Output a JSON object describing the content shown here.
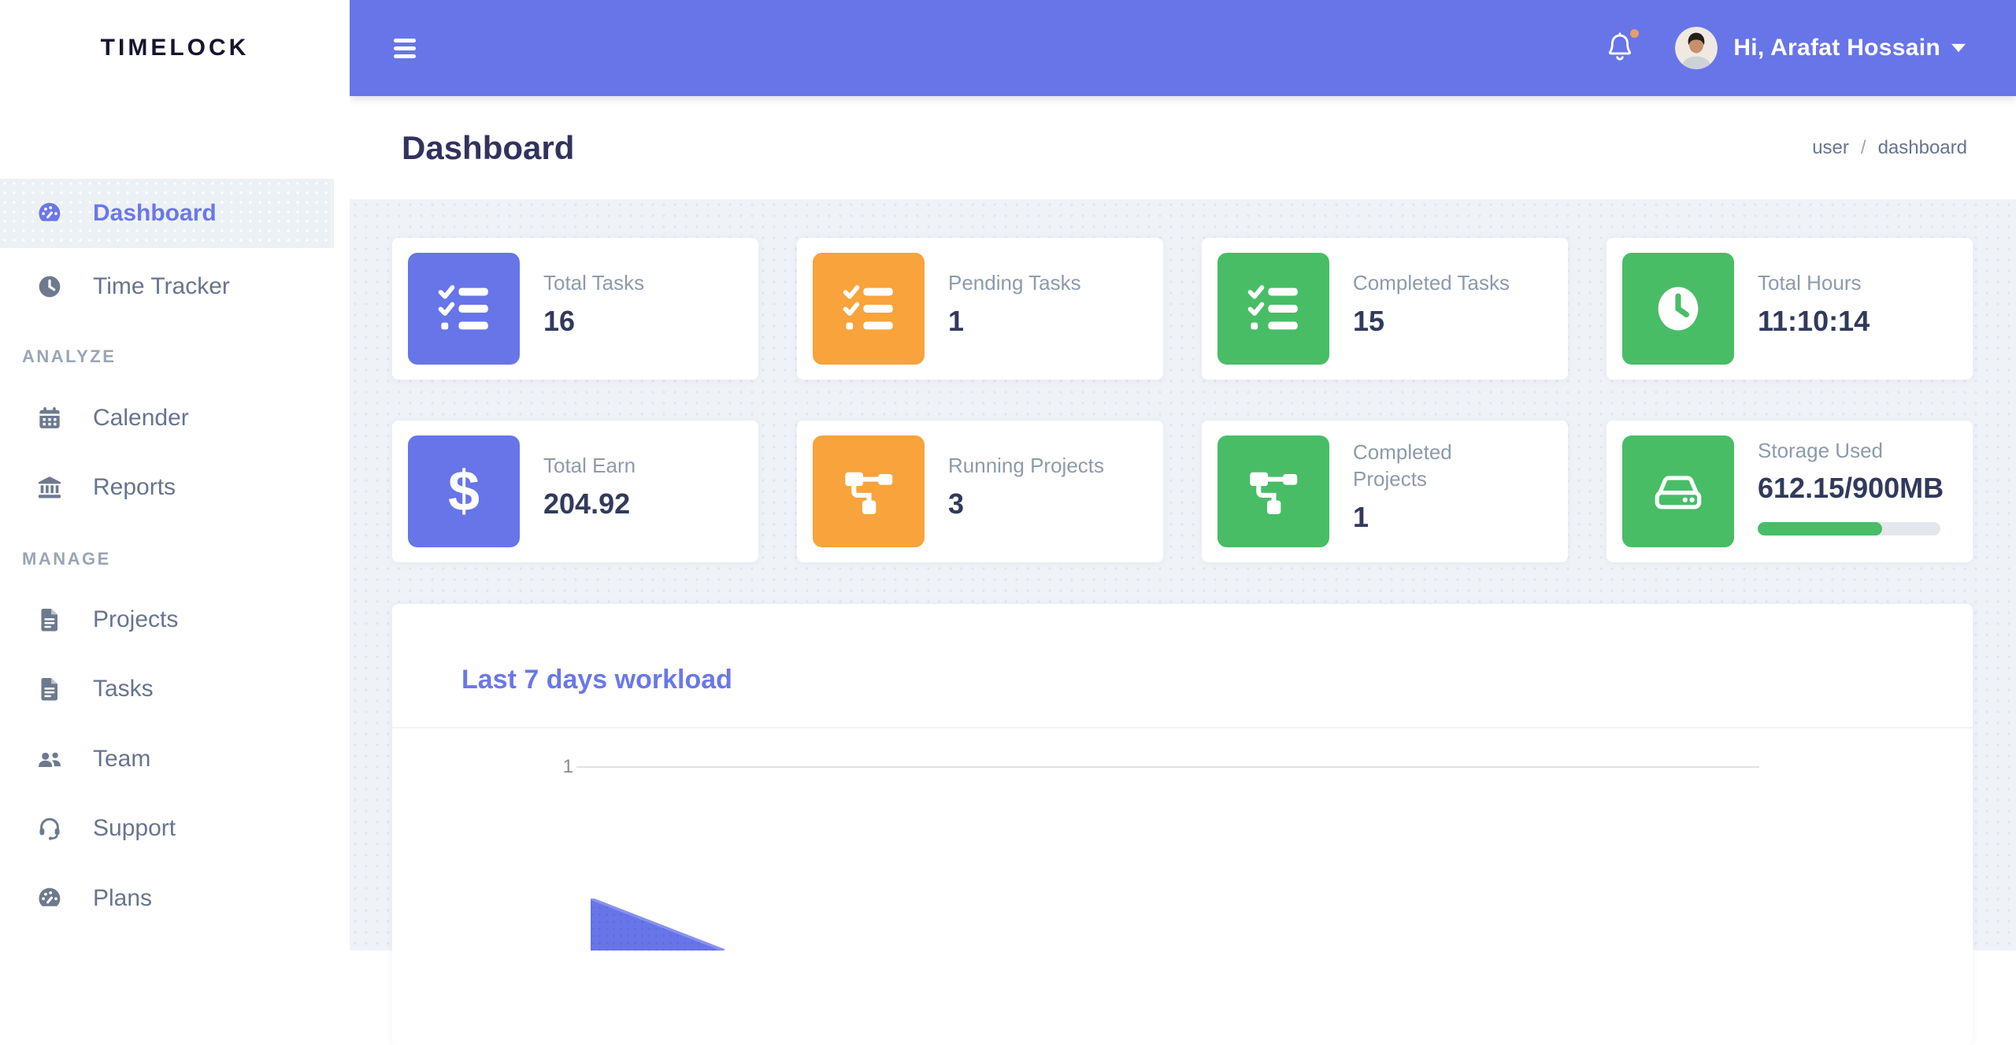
{
  "app": {
    "name": "TIMELOCK"
  },
  "palette": {
    "indigo": "#6775e8",
    "indigoText": "#6b77e8",
    "orange": "#f8a33c",
    "green": "#48bd66",
    "heading": "#32325d",
    "muted": "#8e9aab",
    "sidebarText": "#67748e",
    "sectionText": "#9aa5b5",
    "logo": "#15152e",
    "bg": "#eff3f7",
    "activeBg": "#ecf1f6",
    "gridline": "#e2e2e2",
    "tick": "#8b8b8b",
    "track": "#e4e7ec",
    "divider": "#f1f3f5",
    "badge": "#e79e67",
    "valueText": "#313a5c"
  },
  "topbar": {
    "greeting": "Hi, Arafat Hossain"
  },
  "page_header": {
    "title": "Dashboard",
    "breadcrumb": {
      "parent": "user",
      "separator": "/",
      "current": "dashboard"
    }
  },
  "sidebar": {
    "items": [
      {
        "label": "Dashboard",
        "icon": "gauge-icon",
        "active": true
      },
      {
        "label": "Time Tracker",
        "icon": "clock-icon"
      },
      {
        "label": "ANALYZE",
        "type": "section"
      },
      {
        "label": "Calender",
        "icon": "calendar-icon"
      },
      {
        "label": "Reports",
        "icon": "bank-icon"
      },
      {
        "label": "MANAGE",
        "type": "section"
      },
      {
        "label": "Projects",
        "icon": "file-icon"
      },
      {
        "label": "Tasks",
        "icon": "file-icon"
      },
      {
        "label": "Team",
        "icon": "users-icon"
      },
      {
        "label": "Support",
        "icon": "headset-icon"
      },
      {
        "label": "Plans",
        "icon": "gauge-icon"
      }
    ]
  },
  "stats": {
    "cards": [
      {
        "label": "Total Tasks",
        "value": "16",
        "tile_color": "#6775e8",
        "icon": "tasks-icon"
      },
      {
        "label": "Pending Tasks",
        "value": "1",
        "tile_color": "#f8a33c",
        "icon": "tasks-icon"
      },
      {
        "label": "Completed Tasks",
        "value": "15",
        "tile_color": "#48bd66",
        "icon": "tasks-icon"
      },
      {
        "label": "Total Hours",
        "value": "11:10:14",
        "tile_color": "#48bd66",
        "icon": "clock-icon"
      },
      {
        "label": "Total Earn",
        "value": "204.92",
        "tile_color": "#6775e8",
        "icon": "dollar-icon"
      },
      {
        "label": "Running Projects",
        "value": "3",
        "tile_color": "#f8a33c",
        "icon": "project-diagram-icon"
      },
      {
        "label": "Completed Projects",
        "value": "1",
        "tile_color": "#48bd66",
        "icon": "project-diagram-icon"
      },
      {
        "label": "Storage Used",
        "value": "612.15/900MB",
        "tile_color": "#48bd66",
        "icon": "hdd-icon",
        "progress_percent": 68
      }
    ]
  },
  "chart": {
    "title": "Last 7 days workload"
  },
  "chart_data": {
    "type": "area",
    "title": "Last 7 days workload",
    "series": [
      {
        "name": "Workload",
        "color": "#6775e8"
      }
    ],
    "y_ticks_visible": [
      "1"
    ],
    "ylim": [
      0,
      1
    ],
    "grid": "single horizontal gridline at y=1",
    "legend": "none visible",
    "note": "Chart is clipped by the viewport bottom; only the top of the first area peak is visible at the lower left of the plot."
  }
}
